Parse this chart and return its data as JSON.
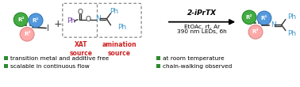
{
  "bg_color": "#ffffff",
  "r1_color": "#5599dd",
  "r2_color": "#44aa44",
  "r3_color": "#ffaaaa",
  "r1_ec": "#3377bb",
  "r2_ec": "#228822",
  "r3_ec": "#dd8888",
  "bullet_color": "#2d8a2d",
  "bullet_texts_left": [
    "transition metal and additive free",
    "scalable in continuous flow"
  ],
  "bullet_texts_right": [
    "at room temperature",
    "chain-walking observed"
  ],
  "xat_label_color": "#cc2222",
  "amination_label_color": "#cc2222",
  "reagent_above": "2-iPrTX",
  "reagent_below_1": "EtOAc, rt, Ar",
  "reagent_below_2": "390 nm LEDs, 6h",
  "ph_color_left": "#7744aa",
  "n_color": "#4499cc",
  "ph_color_right": "#4499cc",
  "bond_color": "#333333",
  "imine_n_color": "#4499cc"
}
